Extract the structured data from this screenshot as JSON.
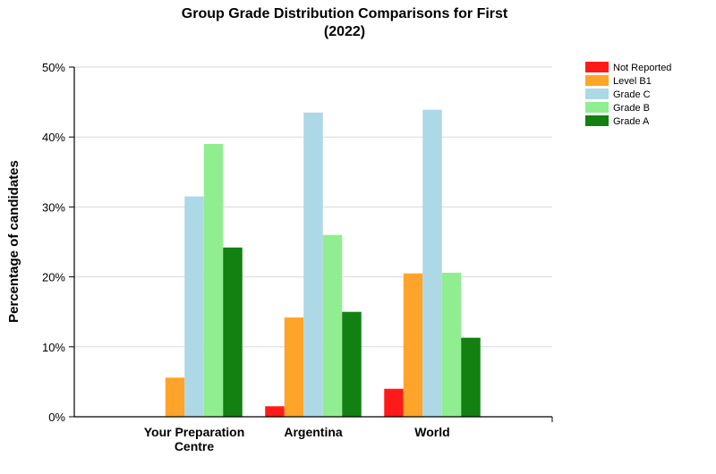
{
  "chart_data": {
    "type": "bar",
    "title_line1": "Group Grade Distribution Comparisons for First",
    "title_line2": "(2022)",
    "ylabel": "Percentage of candidates",
    "xlabel": "",
    "ylim": [
      0,
      50
    ],
    "yticks": [
      "0%",
      "10%",
      "20%",
      "30%",
      "40%",
      "50%"
    ],
    "categories": [
      {
        "line1": "Your Preparation",
        "line2": "Centre"
      },
      {
        "line1": "Argentina",
        "line2": ""
      },
      {
        "line1": "World",
        "line2": ""
      }
    ],
    "grid": true,
    "legend_position": "top-right",
    "series": [
      {
        "name": "Not Reported",
        "color": "#ff1a1a",
        "values": [
          0,
          1.5,
          4.0
        ]
      },
      {
        "name": "Level B1",
        "color": "#ffa42a",
        "values": [
          5.6,
          14.2,
          20.5
        ]
      },
      {
        "name": "Grade C",
        "color": "#add8e6",
        "values": [
          31.5,
          43.5,
          43.9
        ]
      },
      {
        "name": "Grade B",
        "color": "#90ee90",
        "values": [
          39.0,
          26.0,
          20.6
        ]
      },
      {
        "name": "Grade A",
        "color": "#128112",
        "values": [
          24.2,
          15.0,
          11.3
        ]
      }
    ]
  }
}
